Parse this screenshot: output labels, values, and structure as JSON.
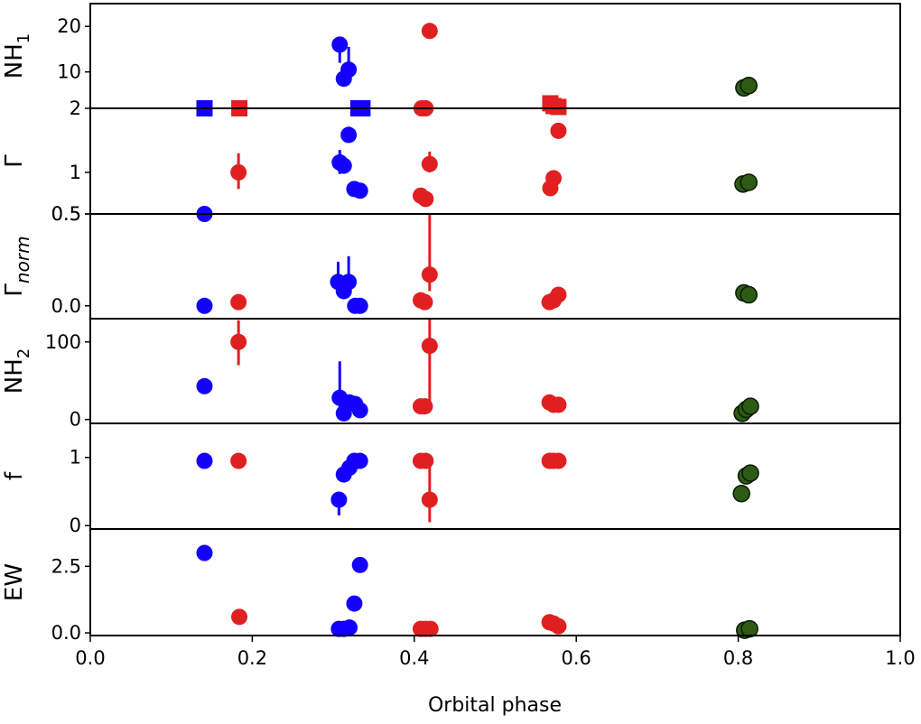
{
  "chart_data": {
    "type": "scatter",
    "shared_x": {
      "label": "Orbital phase",
      "range": [
        0.0,
        1.0
      ],
      "ticks": [
        0.0,
        0.2,
        0.4,
        0.6,
        0.8,
        1.0
      ],
      "tick_labels": [
        "0.0",
        "0.2",
        "0.4",
        "0.6",
        "0.8",
        "1.0"
      ]
    },
    "colors": {
      "blue": "#1400ff",
      "red": "#e02020",
      "green": "#2d5a14",
      "green_edge": "#0a1a05"
    },
    "panels": [
      {
        "id": "nh1",
        "ylabel": "NH",
        "ylabel_sub": "1",
        "ylim": [
          2,
          25
        ],
        "ticks": [
          2,
          10,
          20
        ],
        "tick_labels": [
          "2",
          "10",
          "20"
        ],
        "points": [
          {
            "x": 0.141,
            "y": 2,
            "c": "blue",
            "m": "square"
          },
          {
            "x": 0.184,
            "y": 2,
            "c": "red",
            "m": "square"
          },
          {
            "x": 0.308,
            "y": 16,
            "c": "blue",
            "m": "circle",
            "ylo": 12,
            "yhi": 17
          },
          {
            "x": 0.313,
            "y": 8.5,
            "c": "blue",
            "m": "circle"
          },
          {
            "x": 0.319,
            "y": 10.5,
            "c": "blue",
            "m": "circle",
            "ylo": 9.5,
            "yhi": 15.5
          },
          {
            "x": 0.331,
            "y": 2,
            "c": "blue",
            "m": "square"
          },
          {
            "x": 0.336,
            "y": 2,
            "c": "blue",
            "m": "square"
          },
          {
            "x": 0.409,
            "y": 2,
            "c": "red",
            "m": "circle"
          },
          {
            "x": 0.414,
            "y": 2,
            "c": "red",
            "m": "circle"
          },
          {
            "x": 0.419,
            "y": 19,
            "c": "red",
            "m": "circle"
          },
          {
            "x": 0.568,
            "y": 3.1,
            "c": "red",
            "m": "square"
          },
          {
            "x": 0.572,
            "y": 2.5,
            "c": "red",
            "m": "square"
          },
          {
            "x": 0.578,
            "y": 2.3,
            "c": "red",
            "m": "square"
          },
          {
            "x": 0.807,
            "y": 6.5,
            "c": "green",
            "m": "circle"
          },
          {
            "x": 0.813,
            "y": 7.0,
            "c": "green",
            "m": "circle"
          }
        ]
      },
      {
        "id": "gamma",
        "ylabel": "Γ",
        "ylim": [
          0.5,
          1.77
        ],
        "ticks": [
          0.5,
          1.0
        ],
        "tick_labels": [
          "0.5",
          "1"
        ],
        "points": [
          {
            "x": 0.141,
            "y": 0.5,
            "c": "blue",
            "m": "circle"
          },
          {
            "x": 0.183,
            "y": 1.0,
            "c": "red",
            "m": "circle",
            "ylo": 0.8,
            "yhi": 1.23
          },
          {
            "x": 0.308,
            "y": 1.12,
            "c": "blue",
            "m": "circle",
            "ylo": 0.98,
            "yhi": 1.27
          },
          {
            "x": 0.313,
            "y": 1.08,
            "c": "blue",
            "m": "circle"
          },
          {
            "x": 0.319,
            "y": 1.45,
            "c": "blue",
            "m": "circle",
            "ylo": 1.4,
            "yhi": 1.55
          },
          {
            "x": 0.326,
            "y": 0.8,
            "c": "blue",
            "m": "circle"
          },
          {
            "x": 0.333,
            "y": 0.78,
            "c": "blue",
            "m": "circle"
          },
          {
            "x": 0.408,
            "y": 0.72,
            "c": "red",
            "m": "circle"
          },
          {
            "x": 0.414,
            "y": 0.68,
            "c": "red",
            "m": "circle"
          },
          {
            "x": 0.419,
            "y": 1.1,
            "c": "red",
            "m": "circle",
            "ylo": 1.0,
            "yhi": 1.25
          },
          {
            "x": 0.568,
            "y": 0.81,
            "c": "red",
            "m": "circle"
          },
          {
            "x": 0.572,
            "y": 0.93,
            "c": "red",
            "m": "circle"
          },
          {
            "x": 0.578,
            "y": 1.5,
            "c": "red",
            "m": "circle"
          },
          {
            "x": 0.806,
            "y": 0.86,
            "c": "green",
            "m": "circle"
          },
          {
            "x": 0.813,
            "y": 0.88,
            "c": "green",
            "m": "circle"
          }
        ]
      },
      {
        "id": "gamma-norm",
        "ylabel": "Γ",
        "ylabel_sub": "norm",
        "ylim": [
          -0.07,
          0.5
        ],
        "ticks": [
          0.0,
          0.5
        ],
        "tick_labels": [
          "0.0",
          "0.5"
        ],
        "points": [
          {
            "x": 0.141,
            "y": 0.0,
            "c": "blue",
            "m": "circle"
          },
          {
            "x": 0.183,
            "y": 0.02,
            "c": "red",
            "m": "circle"
          },
          {
            "x": 0.306,
            "y": 0.13,
            "c": "blue",
            "m": "circle",
            "ylo": 0.1,
            "yhi": 0.24
          },
          {
            "x": 0.313,
            "y": 0.08,
            "c": "blue",
            "m": "circle"
          },
          {
            "x": 0.319,
            "y": 0.13,
            "c": "blue",
            "m": "circle",
            "ylo": 0.1,
            "yhi": 0.27
          },
          {
            "x": 0.327,
            "y": 0.0,
            "c": "blue",
            "m": "circle"
          },
          {
            "x": 0.333,
            "y": 0.0,
            "c": "blue",
            "m": "circle"
          },
          {
            "x": 0.408,
            "y": 0.03,
            "c": "red",
            "m": "circle"
          },
          {
            "x": 0.413,
            "y": 0.02,
            "c": "red",
            "m": "circle"
          },
          {
            "x": 0.419,
            "y": 0.17,
            "c": "red",
            "m": "circle",
            "ylo": 0.08,
            "yhi": 0.5
          },
          {
            "x": 0.567,
            "y": 0.02,
            "c": "red",
            "m": "circle"
          },
          {
            "x": 0.572,
            "y": 0.03,
            "c": "red",
            "m": "circle"
          },
          {
            "x": 0.578,
            "y": 0.06,
            "c": "red",
            "m": "circle"
          },
          {
            "x": 0.807,
            "y": 0.07,
            "c": "green",
            "m": "circle"
          },
          {
            "x": 0.813,
            "y": 0.06,
            "c": "green",
            "m": "circle"
          }
        ]
      },
      {
        "id": "nh2",
        "ylabel": "NH",
        "ylabel_sub": "2",
        "ylim": [
          -5,
          130
        ],
        "ticks": [
          0,
          100
        ],
        "tick_labels": [
          "0",
          "100"
        ],
        "points": [
          {
            "x": 0.141,
            "y": 43,
            "c": "blue",
            "m": "circle"
          },
          {
            "x": 0.183,
            "y": 100,
            "c": "red",
            "m": "circle",
            "ylo": 70,
            "yhi": 128
          },
          {
            "x": 0.308,
            "y": 28,
            "c": "blue",
            "m": "circle",
            "ylo": 12,
            "yhi": 75
          },
          {
            "x": 0.313,
            "y": 8,
            "c": "blue",
            "m": "circle"
          },
          {
            "x": 0.32,
            "y": 22,
            "c": "blue",
            "m": "circle"
          },
          {
            "x": 0.327,
            "y": 20,
            "c": "blue",
            "m": "circle"
          },
          {
            "x": 0.333,
            "y": 12,
            "c": "blue",
            "m": "circle"
          },
          {
            "x": 0.408,
            "y": 17,
            "c": "red",
            "m": "circle"
          },
          {
            "x": 0.413,
            "y": 17,
            "c": "red",
            "m": "circle"
          },
          {
            "x": 0.419,
            "y": 95,
            "c": "red",
            "m": "circle",
            "ylo": 12,
            "yhi": 130
          },
          {
            "x": 0.567,
            "y": 22,
            "c": "red",
            "m": "circle"
          },
          {
            "x": 0.572,
            "y": 19,
            "c": "red",
            "m": "circle"
          },
          {
            "x": 0.578,
            "y": 19,
            "c": "red",
            "m": "circle"
          },
          {
            "x": 0.805,
            "y": 8,
            "c": "green",
            "m": "circle"
          },
          {
            "x": 0.81,
            "y": 13,
            "c": "green",
            "m": "circle"
          },
          {
            "x": 0.815,
            "y": 17,
            "c": "green",
            "m": "circle"
          }
        ]
      },
      {
        "id": "f",
        "ylabel": "f",
        "ylim": [
          -0.05,
          1.5
        ],
        "ticks": [
          0.0,
          1.0
        ],
        "tick_labels": [
          "0",
          "1"
        ],
        "points": [
          {
            "x": 0.141,
            "y": 0.95,
            "c": "blue",
            "m": "circle"
          },
          {
            "x": 0.183,
            "y": 0.95,
            "c": "red",
            "m": "circle"
          },
          {
            "x": 0.307,
            "y": 0.38,
            "c": "blue",
            "m": "circle",
            "ylo": 0.15,
            "yhi": 0.45
          },
          {
            "x": 0.313,
            "y": 0.75,
            "c": "blue",
            "m": "circle"
          },
          {
            "x": 0.32,
            "y": 0.85,
            "c": "blue",
            "m": "circle"
          },
          {
            "x": 0.326,
            "y": 0.95,
            "c": "blue",
            "m": "circle"
          },
          {
            "x": 0.333,
            "y": 0.95,
            "c": "blue",
            "m": "circle"
          },
          {
            "x": 0.408,
            "y": 0.95,
            "c": "red",
            "m": "circle"
          },
          {
            "x": 0.414,
            "y": 0.95,
            "c": "red",
            "m": "circle"
          },
          {
            "x": 0.419,
            "y": 0.38,
            "c": "red",
            "m": "circle",
            "ylo": 0.05,
            "yhi": 0.95
          },
          {
            "x": 0.567,
            "y": 0.95,
            "c": "red",
            "m": "circle"
          },
          {
            "x": 0.572,
            "y": 0.95,
            "c": "red",
            "m": "circle"
          },
          {
            "x": 0.578,
            "y": 0.95,
            "c": "red",
            "m": "circle"
          },
          {
            "x": 0.804,
            "y": 0.47,
            "c": "green",
            "m": "circle"
          },
          {
            "x": 0.81,
            "y": 0.73,
            "c": "green",
            "m": "circle"
          },
          {
            "x": 0.815,
            "y": 0.77,
            "c": "green",
            "m": "circle"
          }
        ]
      },
      {
        "id": "ew",
        "ylabel": "EW",
        "ylim": [
          -0.1,
          3.9
        ],
        "ticks": [
          0.0,
          2.5
        ],
        "tick_labels": [
          "0.0",
          "2.5"
        ],
        "points": [
          {
            "x": 0.141,
            "y": 3.0,
            "c": "blue",
            "m": "circle"
          },
          {
            "x": 0.184,
            "y": 0.6,
            "c": "red",
            "m": "circle"
          },
          {
            "x": 0.307,
            "y": 0.15,
            "c": "blue",
            "m": "circle"
          },
          {
            "x": 0.313,
            "y": 0.15,
            "c": "blue",
            "m": "circle"
          },
          {
            "x": 0.32,
            "y": 0.2,
            "c": "blue",
            "m": "circle"
          },
          {
            "x": 0.326,
            "y": 1.1,
            "c": "blue",
            "m": "circle"
          },
          {
            "x": 0.333,
            "y": 2.55,
            "c": "blue",
            "m": "circle"
          },
          {
            "x": 0.408,
            "y": 0.15,
            "c": "red",
            "m": "circle"
          },
          {
            "x": 0.414,
            "y": 0.15,
            "c": "red",
            "m": "circle"
          },
          {
            "x": 0.42,
            "y": 0.15,
            "c": "red",
            "m": "circle"
          },
          {
            "x": 0.567,
            "y": 0.4,
            "c": "red",
            "m": "circle"
          },
          {
            "x": 0.572,
            "y": 0.35,
            "c": "red",
            "m": "circle"
          },
          {
            "x": 0.578,
            "y": 0.25,
            "c": "red",
            "m": "circle"
          },
          {
            "x": 0.808,
            "y": 0.1,
            "c": "green",
            "m": "circle"
          },
          {
            "x": 0.814,
            "y": 0.15,
            "c": "green",
            "m": "circle"
          }
        ]
      }
    ]
  }
}
